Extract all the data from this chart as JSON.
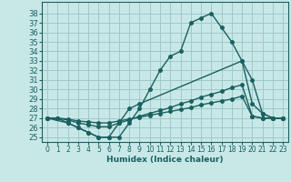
{
  "title": "",
  "xlabel": "Humidex (Indice chaleur)",
  "background_color": "#c8e8e8",
  "grid_color": "#a0c8c8",
  "line_color": "#1a6060",
  "xlim": [
    -0.5,
    23.5
  ],
  "ylim": [
    24.5,
    39.2
  ],
  "xticks": [
    0,
    1,
    2,
    3,
    4,
    5,
    6,
    7,
    8,
    9,
    10,
    11,
    12,
    13,
    14,
    15,
    16,
    17,
    18,
    19,
    20,
    21,
    22,
    23
  ],
  "yticks": [
    25,
    26,
    27,
    28,
    29,
    30,
    31,
    32,
    33,
    34,
    35,
    36,
    37,
    38
  ],
  "line1_x": [
    0,
    1,
    2,
    3,
    4,
    5,
    6,
    7,
    8,
    9,
    10,
    11,
    12,
    13,
    14,
    15,
    16,
    17,
    18,
    19,
    20,
    21,
    22,
    23
  ],
  "line1_y": [
    27.0,
    27.0,
    26.5,
    26.0,
    25.5,
    25.0,
    25.0,
    25.0,
    26.5,
    28.0,
    30.0,
    32.0,
    33.5,
    34.0,
    37.0,
    37.5,
    38.0,
    36.5,
    35.0,
    33.0,
    28.5,
    27.5,
    27.0,
    27.0
  ],
  "line2_x": [
    0,
    2,
    3,
    4,
    5,
    6,
    7,
    8,
    9,
    19,
    20,
    21,
    22,
    23
  ],
  "line2_y": [
    27.0,
    26.5,
    26.0,
    25.5,
    25.0,
    25.0,
    26.5,
    28.0,
    28.5,
    33.0,
    31.0,
    27.5,
    27.0,
    27.0
  ],
  "line3_x": [
    0,
    1,
    2,
    3,
    4,
    5,
    6,
    7,
    8,
    9,
    10,
    11,
    12,
    13,
    14,
    15,
    16,
    17,
    18,
    19,
    20,
    21,
    22,
    23
  ],
  "line3_y": [
    27.0,
    27.0,
    26.8,
    26.5,
    26.3,
    26.1,
    26.1,
    26.5,
    26.8,
    27.2,
    27.5,
    27.8,
    28.1,
    28.5,
    28.8,
    29.2,
    29.5,
    29.8,
    30.2,
    30.5,
    27.2,
    27.0,
    27.0,
    27.0
  ],
  "line4_x": [
    0,
    1,
    2,
    3,
    4,
    5,
    6,
    7,
    8,
    9,
    10,
    11,
    12,
    13,
    14,
    15,
    16,
    17,
    18,
    19,
    20,
    21,
    22,
    23
  ],
  "line4_y": [
    27.0,
    27.0,
    26.9,
    26.7,
    26.6,
    26.5,
    26.5,
    26.7,
    26.9,
    27.1,
    27.3,
    27.5,
    27.7,
    27.9,
    28.1,
    28.4,
    28.6,
    28.8,
    29.0,
    29.3,
    27.2,
    27.0,
    27.0,
    27.0
  ],
  "marker_size": 2.5,
  "linewidth": 1.0
}
